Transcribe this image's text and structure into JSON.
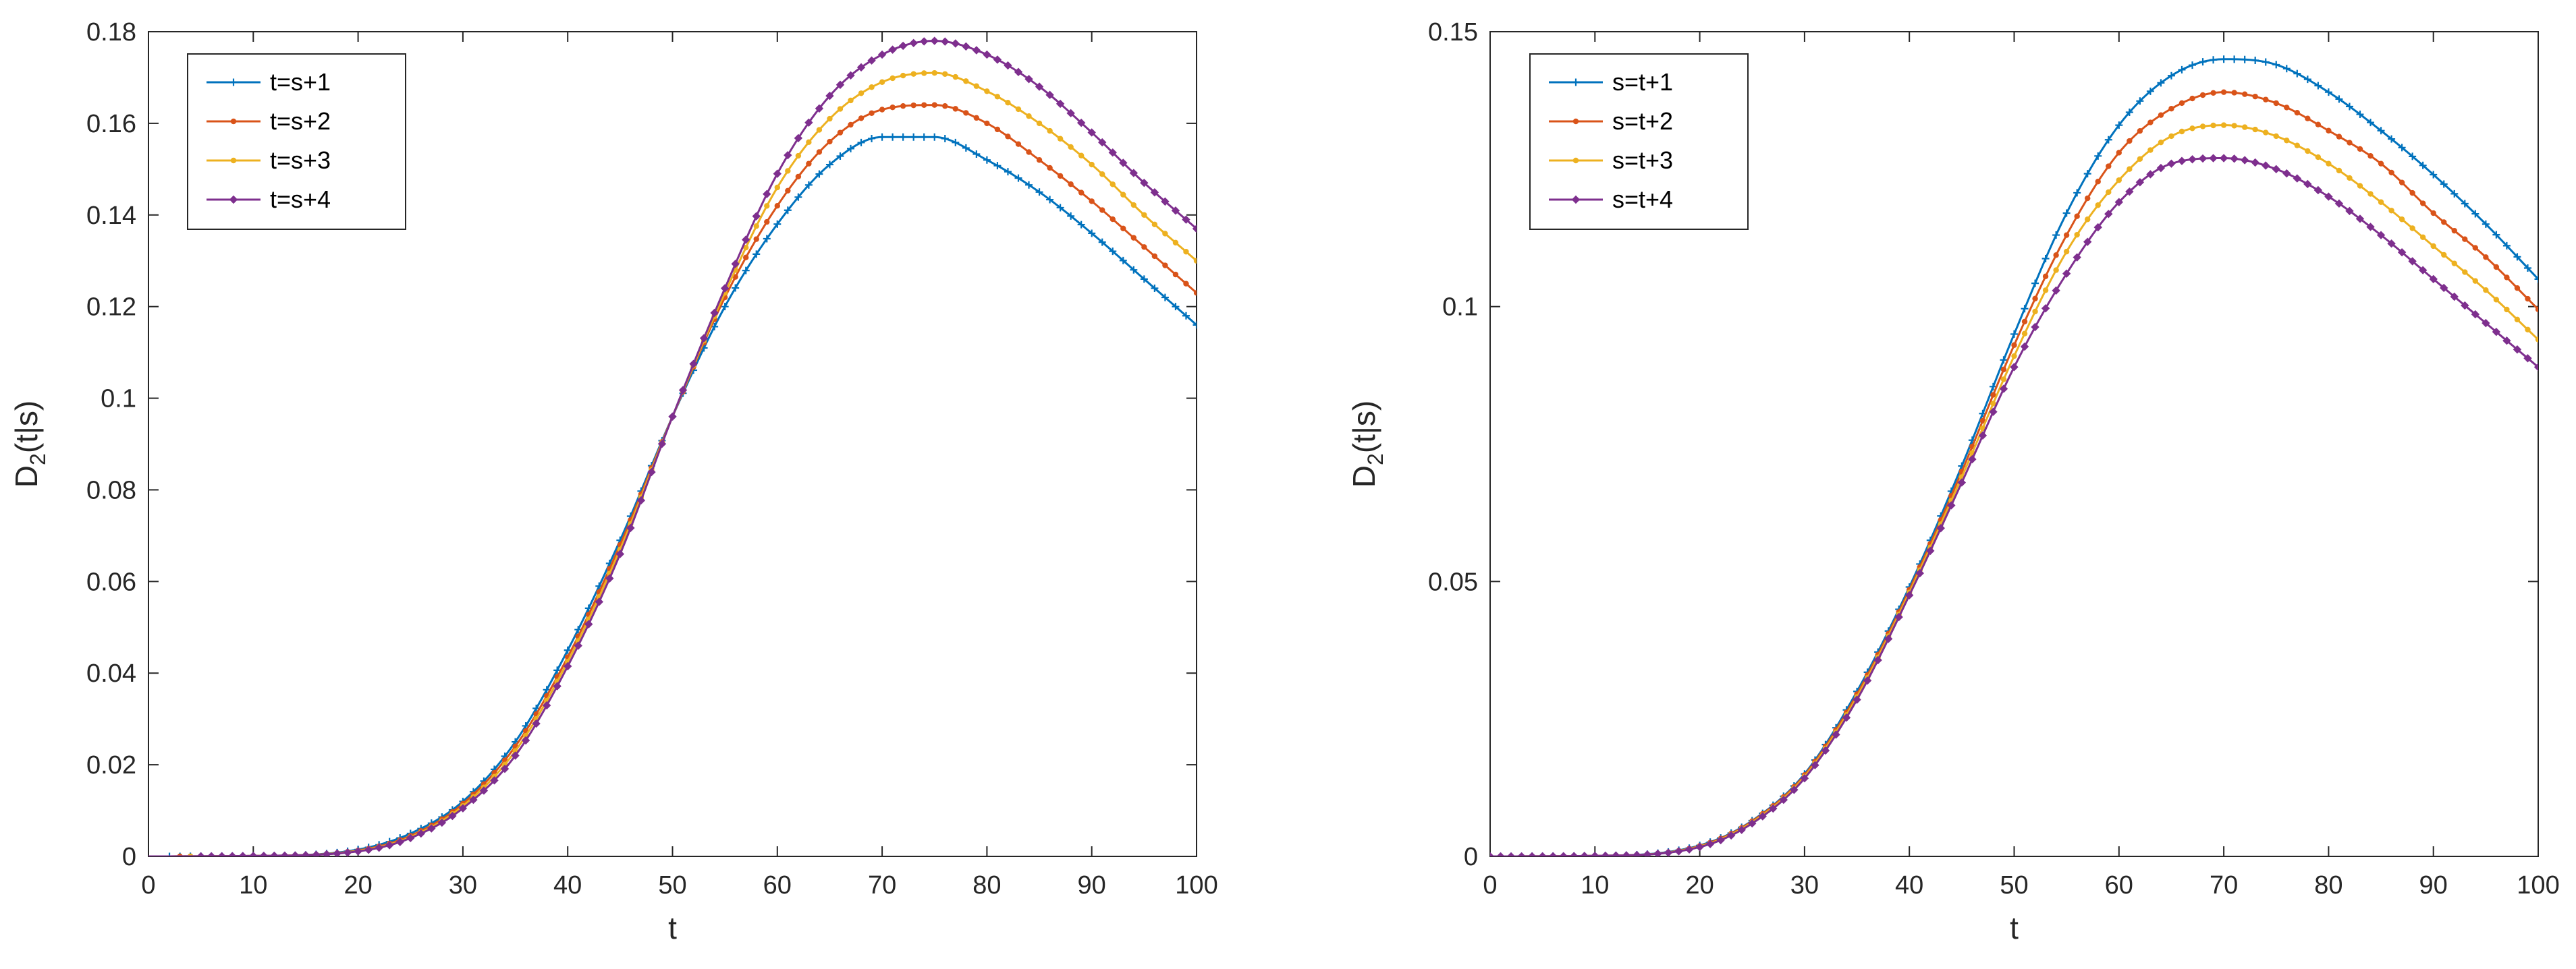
{
  "chart_data": [
    {
      "type": "line",
      "title": "",
      "xlabel": "t",
      "ylabel_main": "D",
      "ylabel_sub": "2",
      "ylabel_rest": "(t|s)",
      "xlim": [
        0,
        100
      ],
      "ylim": [
        0,
        0.18
      ],
      "xticks": [
        "0",
        "10",
        "20",
        "30",
        "40",
        "50",
        "60",
        "70",
        "80",
        "90",
        "100"
      ],
      "yticks": [
        "0",
        "0.02",
        "0.04",
        "0.06",
        "0.08",
        "0.1",
        "0.12",
        "0.14",
        "0.16",
        "0.18"
      ],
      "x": [
        0,
        10,
        20,
        25,
        30,
        35,
        40,
        45,
        50,
        55,
        60,
        65,
        70,
        75,
        80,
        85,
        90,
        95,
        100
      ],
      "legend_position": "top-left",
      "series": [
        {
          "name": "t=s+1",
          "color": "#0072BD",
          "marker": "plus",
          "x_start": 2,
          "values": [
            0,
            0.0001,
            0.0015,
            0.005,
            0.012,
            0.025,
            0.045,
            0.069,
            0.096,
            0.12,
            0.138,
            0.151,
            0.157,
            0.157,
            0.152,
            0.145,
            0.136,
            0.126,
            0.116
          ]
        },
        {
          "name": "t=s+2",
          "color": "#D95319",
          "marker": "dot",
          "x_start": 3,
          "values": [
            0,
            0.0001,
            0.0013,
            0.0045,
            0.0115,
            0.024,
            0.0435,
            0.068,
            0.096,
            0.122,
            0.142,
            0.156,
            0.163,
            0.164,
            0.16,
            0.152,
            0.143,
            0.133,
            0.123
          ]
        },
        {
          "name": "t=s+3",
          "color": "#EDB120",
          "marker": "dot",
          "x_start": 4,
          "values": [
            0,
            0.0001,
            0.0012,
            0.0042,
            0.011,
            0.023,
            0.0425,
            0.067,
            0.096,
            0.123,
            0.146,
            0.161,
            0.169,
            0.171,
            0.167,
            0.16,
            0.151,
            0.14,
            0.13
          ]
        },
        {
          "name": "t=s+4",
          "color": "#7E2F8E",
          "marker": "diamond",
          "x_start": 5,
          "values": [
            0,
            0.0001,
            0.0011,
            0.004,
            0.0105,
            0.022,
            0.0415,
            0.066,
            0.096,
            0.124,
            0.149,
            0.166,
            0.175,
            0.178,
            0.175,
            0.168,
            0.158,
            0.147,
            0.137
          ]
        }
      ]
    },
    {
      "type": "line",
      "title": "",
      "xlabel": "t",
      "ylabel_main": "D",
      "ylabel_sub": "2",
      "ylabel_rest": "(t|s)",
      "xlim": [
        0,
        100
      ],
      "ylim": [
        0,
        0.15
      ],
      "xticks": [
        "0",
        "10",
        "20",
        "30",
        "40",
        "50",
        "60",
        "70",
        "80",
        "90",
        "100"
      ],
      "yticks": [
        "0",
        "0.05",
        "0.1",
        "0.15"
      ],
      "x": [
        0,
        10,
        20,
        25,
        30,
        35,
        40,
        45,
        50,
        55,
        60,
        65,
        70,
        75,
        80,
        85,
        90,
        95,
        100
      ],
      "legend_position": "top-left",
      "series": [
        {
          "name": "s=t+1",
          "color": "#0072BD",
          "marker": "plus",
          "x_start": 0,
          "values": [
            0,
            0.0001,
            0.002,
            0.0065,
            0.015,
            0.03,
            0.049,
            0.071,
            0.095,
            0.117,
            0.133,
            0.142,
            0.145,
            0.144,
            0.139,
            0.132,
            0.124,
            0.115,
            0.105
          ]
        },
        {
          "name": "s=t+2",
          "color": "#D95319",
          "marker": "dot",
          "x_start": 0,
          "values": [
            0,
            0.0001,
            0.0019,
            0.0064,
            0.0148,
            0.0295,
            0.0485,
            0.07,
            0.093,
            0.113,
            0.128,
            0.136,
            0.139,
            0.137,
            0.132,
            0.126,
            0.117,
            0.109,
            0.0995
          ]
        },
        {
          "name": "s=t+3",
          "color": "#EDB120",
          "marker": "dot",
          "x_start": 0,
          "values": [
            0,
            0.0001,
            0.0018,
            0.0062,
            0.0145,
            0.029,
            0.048,
            0.069,
            0.091,
            0.11,
            0.123,
            0.131,
            0.133,
            0.131,
            0.126,
            0.119,
            0.111,
            0.103,
            0.094
          ]
        },
        {
          "name": "s=t+4",
          "color": "#7E2F8E",
          "marker": "diamond",
          "x_start": 0,
          "values": [
            0,
            0.0001,
            0.0017,
            0.006,
            0.0142,
            0.0285,
            0.0475,
            0.068,
            0.089,
            0.106,
            0.119,
            0.126,
            0.127,
            0.125,
            0.12,
            0.113,
            0.105,
            0.097,
            0.089
          ]
        }
      ]
    }
  ]
}
